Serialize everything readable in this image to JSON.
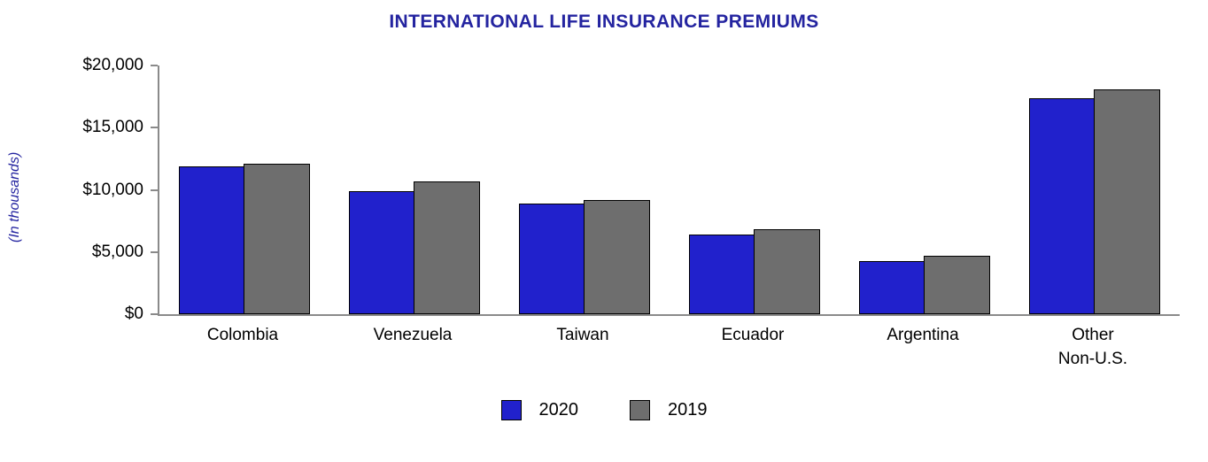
{
  "chart_data": {
    "type": "bar",
    "title": "INTERNATIONAL LIFE INSURANCE PREMIUMS",
    "ylabel": "(In thousands)",
    "xlabel": "",
    "categories": [
      "Colombia",
      "Venezuela",
      "Taiwan",
      "Ecuador",
      "Argentina",
      "Other\nNon-U.S."
    ],
    "series": [
      {
        "name": "2020",
        "color": "#2121CC",
        "values": [
          11900,
          9900,
          8900,
          6400,
          4300,
          17400
        ]
      },
      {
        "name": "2019",
        "color": "#6E6E6E",
        "values": [
          12100,
          10700,
          9200,
          6800,
          4700,
          18100
        ]
      }
    ],
    "ylim": [
      0,
      20000
    ],
    "ytick_values": [
      0,
      5000,
      10000,
      15000,
      20000
    ],
    "ytick_labels": [
      "$0",
      "$5,000",
      "$10,000",
      "$15,000",
      "$20,000"
    ],
    "legend_position": "bottom",
    "grid": false
  },
  "colors": {
    "title": "#2424A0",
    "axis": "#8A8A8A",
    "bar_border": "#000000"
  }
}
